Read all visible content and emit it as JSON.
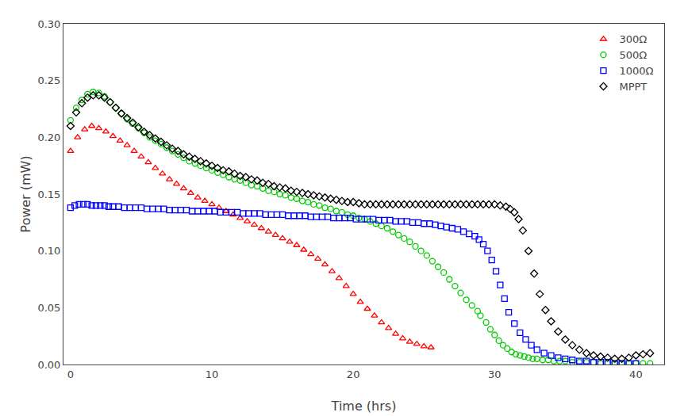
{
  "chart_data": {
    "type": "scatter",
    "xlabel": "Time (hrs)",
    "ylabel": "Power (mW)",
    "xlim": [
      -0.5,
      42
    ],
    "ylim": [
      0,
      0.3
    ],
    "xticks": [
      0,
      10,
      20,
      30,
      40
    ],
    "yticks": [
      {
        "value": 0.0,
        "label": "0.00"
      },
      0.05,
      {
        "value": 0.1,
        "label": "0.10"
      },
      0.15,
      {
        "value": 0.2,
        "label": "0.20"
      },
      0.25,
      {
        "value": 0.3,
        "label": "0.30"
      }
    ],
    "grid": false,
    "legend": "upper right",
    "series": [
      {
        "name": "300Ω",
        "color": "red",
        "marker": "triangle",
        "x": [
          0,
          0.5,
          1.0,
          1.5,
          2.0,
          2.5,
          3.0,
          3.5,
          4.0,
          4.5,
          5.0,
          5.5,
          6.0,
          6.5,
          7.0,
          7.5,
          8.0,
          8.5,
          9.0,
          9.5,
          10.0,
          10.5,
          11.0,
          11.5,
          12.0,
          12.5,
          13.0,
          13.5,
          14.0,
          14.5,
          15.0,
          15.5,
          16.0,
          16.5,
          17.0,
          17.5,
          18.0,
          18.5,
          19.0,
          19.5,
          20.0,
          20.5,
          21.0,
          21.5,
          22.0,
          22.5,
          23.0,
          23.5,
          24.0,
          24.5,
          25.0,
          25.5
        ],
        "values": [
          0.188,
          0.2,
          0.207,
          0.21,
          0.208,
          0.205,
          0.201,
          0.197,
          0.193,
          0.188,
          0.183,
          0.178,
          0.173,
          0.168,
          0.163,
          0.159,
          0.155,
          0.151,
          0.147,
          0.144,
          0.141,
          0.138,
          0.135,
          0.132,
          0.129,
          0.126,
          0.123,
          0.12,
          0.117,
          0.114,
          0.111,
          0.108,
          0.105,
          0.101,
          0.097,
          0.093,
          0.088,
          0.082,
          0.076,
          0.069,
          0.062,
          0.055,
          0.049,
          0.043,
          0.037,
          0.032,
          0.027,
          0.023,
          0.02,
          0.018,
          0.016,
          0.015
        ]
      },
      {
        "name": "500Ω",
        "color": "#00cc00",
        "marker": "circle",
        "x": [
          0,
          0.4,
          0.8,
          1.2,
          1.6,
          2.0,
          2.4,
          2.8,
          3.2,
          3.6,
          4.0,
          4.4,
          4.8,
          5.2,
          5.6,
          6.0,
          6.4,
          6.8,
          7.2,
          7.6,
          8.0,
          8.4,
          8.8,
          9.2,
          9.6,
          10.0,
          10.4,
          10.8,
          11.2,
          11.6,
          12.0,
          12.4,
          12.8,
          13.2,
          13.6,
          14.0,
          14.4,
          14.8,
          15.2,
          15.6,
          16.0,
          16.4,
          16.8,
          17.2,
          17.6,
          18.0,
          18.4,
          18.8,
          19.2,
          19.6,
          20.0,
          20.4,
          20.8,
          21.2,
          21.6,
          22.0,
          22.4,
          22.8,
          23.2,
          23.6,
          24.0,
          24.4,
          24.8,
          25.2,
          25.6,
          26.0,
          26.4,
          26.8,
          27.2,
          27.6,
          28.0,
          28.4,
          28.8,
          29.0,
          29.4,
          29.7,
          30.0,
          30.3,
          30.6,
          30.9,
          31.2,
          31.5,
          31.8,
          32.1,
          32.4,
          32.7,
          33.0,
          33.4,
          33.8,
          34.2,
          34.6,
          35.0,
          35.5,
          36.0,
          36.5,
          37.0,
          37.5,
          38.0,
          38.5,
          39.0,
          39.5,
          40.0,
          40.5,
          41.0
        ],
        "values": [
          0.215,
          0.226,
          0.233,
          0.238,
          0.24,
          0.239,
          0.236,
          0.231,
          0.226,
          0.221,
          0.216,
          0.212,
          0.208,
          0.204,
          0.2,
          0.197,
          0.194,
          0.191,
          0.188,
          0.185,
          0.182,
          0.179,
          0.177,
          0.175,
          0.173,
          0.171,
          0.169,
          0.167,
          0.165,
          0.163,
          0.162,
          0.16,
          0.158,
          0.157,
          0.155,
          0.153,
          0.152,
          0.15,
          0.149,
          0.147,
          0.146,
          0.144,
          0.143,
          0.141,
          0.14,
          0.138,
          0.137,
          0.135,
          0.134,
          0.132,
          0.131,
          0.129,
          0.128,
          0.126,
          0.124,
          0.122,
          0.12,
          0.117,
          0.114,
          0.111,
          0.108,
          0.104,
          0.1,
          0.096,
          0.091,
          0.086,
          0.081,
          0.075,
          0.069,
          0.063,
          0.057,
          0.052,
          0.047,
          0.043,
          0.037,
          0.031,
          0.026,
          0.021,
          0.017,
          0.014,
          0.011,
          0.009,
          0.008,
          0.007,
          0.006,
          0.005,
          0.005,
          0.004,
          0.004,
          0.003,
          0.003,
          0.003,
          0.002,
          0.002,
          0.002,
          0.002,
          0.001,
          0.001,
          0.001,
          0.001,
          0.001,
          0.001,
          0.001,
          0.001
        ]
      },
      {
        "name": "1000Ω",
        "color": "blue",
        "marker": "square",
        "x": [
          0,
          0.3,
          0.6,
          0.9,
          1.2,
          1.5,
          1.8,
          2.1,
          2.4,
          2.7,
          3.0,
          3.4,
          3.8,
          4.2,
          4.6,
          5.0,
          5.4,
          5.8,
          6.2,
          6.6,
          7.0,
          7.4,
          7.8,
          8.2,
          8.6,
          9.0,
          9.4,
          9.8,
          10.2,
          10.6,
          11.0,
          11.4,
          11.8,
          12.2,
          12.6,
          13.0,
          13.4,
          13.8,
          14.2,
          14.6,
          15.0,
          15.4,
          15.8,
          16.2,
          16.6,
          17.0,
          17.4,
          17.8,
          18.2,
          18.6,
          19.0,
          19.4,
          19.8,
          20.2,
          20.6,
          21.0,
          21.4,
          21.8,
          22.2,
          22.6,
          23.0,
          23.4,
          23.8,
          24.2,
          24.6,
          25.0,
          25.4,
          25.8,
          26.2,
          26.6,
          27.0,
          27.4,
          27.8,
          28.2,
          28.6,
          28.9,
          29.2,
          29.5,
          29.8,
          30.1,
          30.4,
          30.7,
          31.0,
          31.4,
          31.8,
          32.2,
          32.6,
          33.0,
          33.5,
          34.0,
          34.5,
          35.0,
          35.5,
          36.0,
          36.5,
          37.0,
          37.5,
          38.0,
          38.5,
          39.0,
          39.5,
          40.0
        ],
        "values": [
          0.138,
          0.14,
          0.141,
          0.141,
          0.141,
          0.14,
          0.14,
          0.14,
          0.14,
          0.139,
          0.139,
          0.139,
          0.138,
          0.138,
          0.138,
          0.138,
          0.137,
          0.137,
          0.137,
          0.137,
          0.136,
          0.136,
          0.136,
          0.136,
          0.135,
          0.135,
          0.135,
          0.135,
          0.135,
          0.134,
          0.134,
          0.134,
          0.134,
          0.133,
          0.133,
          0.133,
          0.133,
          0.132,
          0.132,
          0.132,
          0.132,
          0.131,
          0.131,
          0.131,
          0.131,
          0.13,
          0.13,
          0.13,
          0.13,
          0.129,
          0.129,
          0.129,
          0.129,
          0.128,
          0.128,
          0.128,
          0.128,
          0.127,
          0.127,
          0.127,
          0.126,
          0.126,
          0.126,
          0.125,
          0.125,
          0.124,
          0.124,
          0.123,
          0.122,
          0.121,
          0.12,
          0.119,
          0.117,
          0.115,
          0.113,
          0.11,
          0.106,
          0.1,
          0.092,
          0.082,
          0.07,
          0.058,
          0.046,
          0.036,
          0.028,
          0.022,
          0.017,
          0.013,
          0.01,
          0.008,
          0.006,
          0.005,
          0.004,
          0.003,
          0.003,
          0.002,
          0.002,
          0.002,
          0.001,
          0.001,
          0.001,
          0.001
        ]
      },
      {
        "name": "MPPT",
        "color": "black",
        "marker": "diamond",
        "x": [
          0,
          0.4,
          0.8,
          1.2,
          1.6,
          2.0,
          2.4,
          2.8,
          3.2,
          3.6,
          4.0,
          4.4,
          4.8,
          5.2,
          5.6,
          6.0,
          6.4,
          6.8,
          7.2,
          7.6,
          8.0,
          8.4,
          8.8,
          9.2,
          9.6,
          10.0,
          10.4,
          10.8,
          11.2,
          11.6,
          12.0,
          12.4,
          12.8,
          13.2,
          13.6,
          14.0,
          14.4,
          14.8,
          15.2,
          15.6,
          16.0,
          16.4,
          16.8,
          17.2,
          17.6,
          18.0,
          18.4,
          18.8,
          19.2,
          19.6,
          20.0,
          20.4,
          20.8,
          21.2,
          21.6,
          22.0,
          22.4,
          22.8,
          23.2,
          23.6,
          24.0,
          24.4,
          24.8,
          25.2,
          25.6,
          26.0,
          26.4,
          26.8,
          27.2,
          27.6,
          28.0,
          28.4,
          28.8,
          29.2,
          29.6,
          30.0,
          30.4,
          30.8,
          31.1,
          31.4,
          31.7,
          32.0,
          32.4,
          32.8,
          33.2,
          33.6,
          34.0,
          34.5,
          35.0,
          35.5,
          36.0,
          36.5,
          37.0,
          37.5,
          38.0,
          38.5,
          39.0,
          39.5,
          40.0,
          40.5,
          41.0
        ],
        "values": [
          0.21,
          0.222,
          0.23,
          0.235,
          0.237,
          0.237,
          0.235,
          0.231,
          0.226,
          0.221,
          0.217,
          0.213,
          0.209,
          0.205,
          0.202,
          0.199,
          0.196,
          0.193,
          0.19,
          0.188,
          0.185,
          0.183,
          0.181,
          0.179,
          0.177,
          0.175,
          0.173,
          0.171,
          0.17,
          0.168,
          0.166,
          0.165,
          0.163,
          0.162,
          0.16,
          0.159,
          0.157,
          0.156,
          0.155,
          0.153,
          0.152,
          0.151,
          0.15,
          0.149,
          0.148,
          0.147,
          0.146,
          0.145,
          0.144,
          0.143,
          0.143,
          0.142,
          0.141,
          0.141,
          0.141,
          0.141,
          0.141,
          0.141,
          0.141,
          0.141,
          0.141,
          0.141,
          0.141,
          0.141,
          0.141,
          0.141,
          0.141,
          0.141,
          0.141,
          0.141,
          0.141,
          0.141,
          0.141,
          0.141,
          0.141,
          0.141,
          0.14,
          0.139,
          0.137,
          0.134,
          0.128,
          0.118,
          0.1,
          0.08,
          0.062,
          0.048,
          0.038,
          0.029,
          0.022,
          0.017,
          0.013,
          0.01,
          0.008,
          0.007,
          0.006,
          0.005,
          0.005,
          0.006,
          0.008,
          0.009,
          0.01
        ]
      }
    ]
  }
}
